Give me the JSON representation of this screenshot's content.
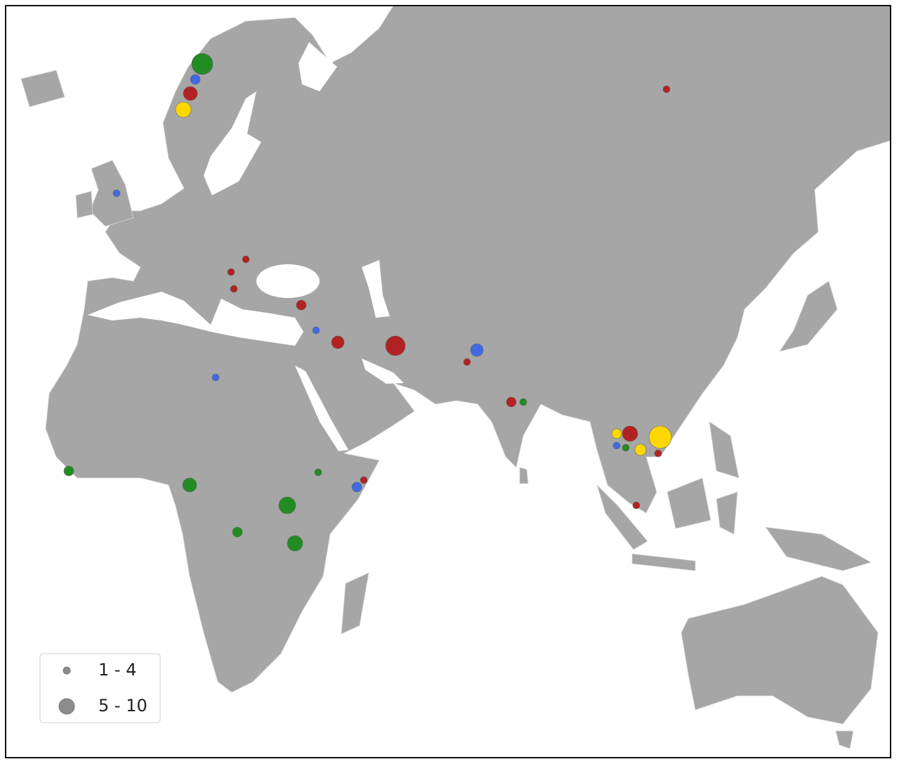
{
  "legend": {
    "items": [
      {
        "label": "1 - 4"
      },
      {
        "label": "5 - 10"
      }
    ]
  }
}
